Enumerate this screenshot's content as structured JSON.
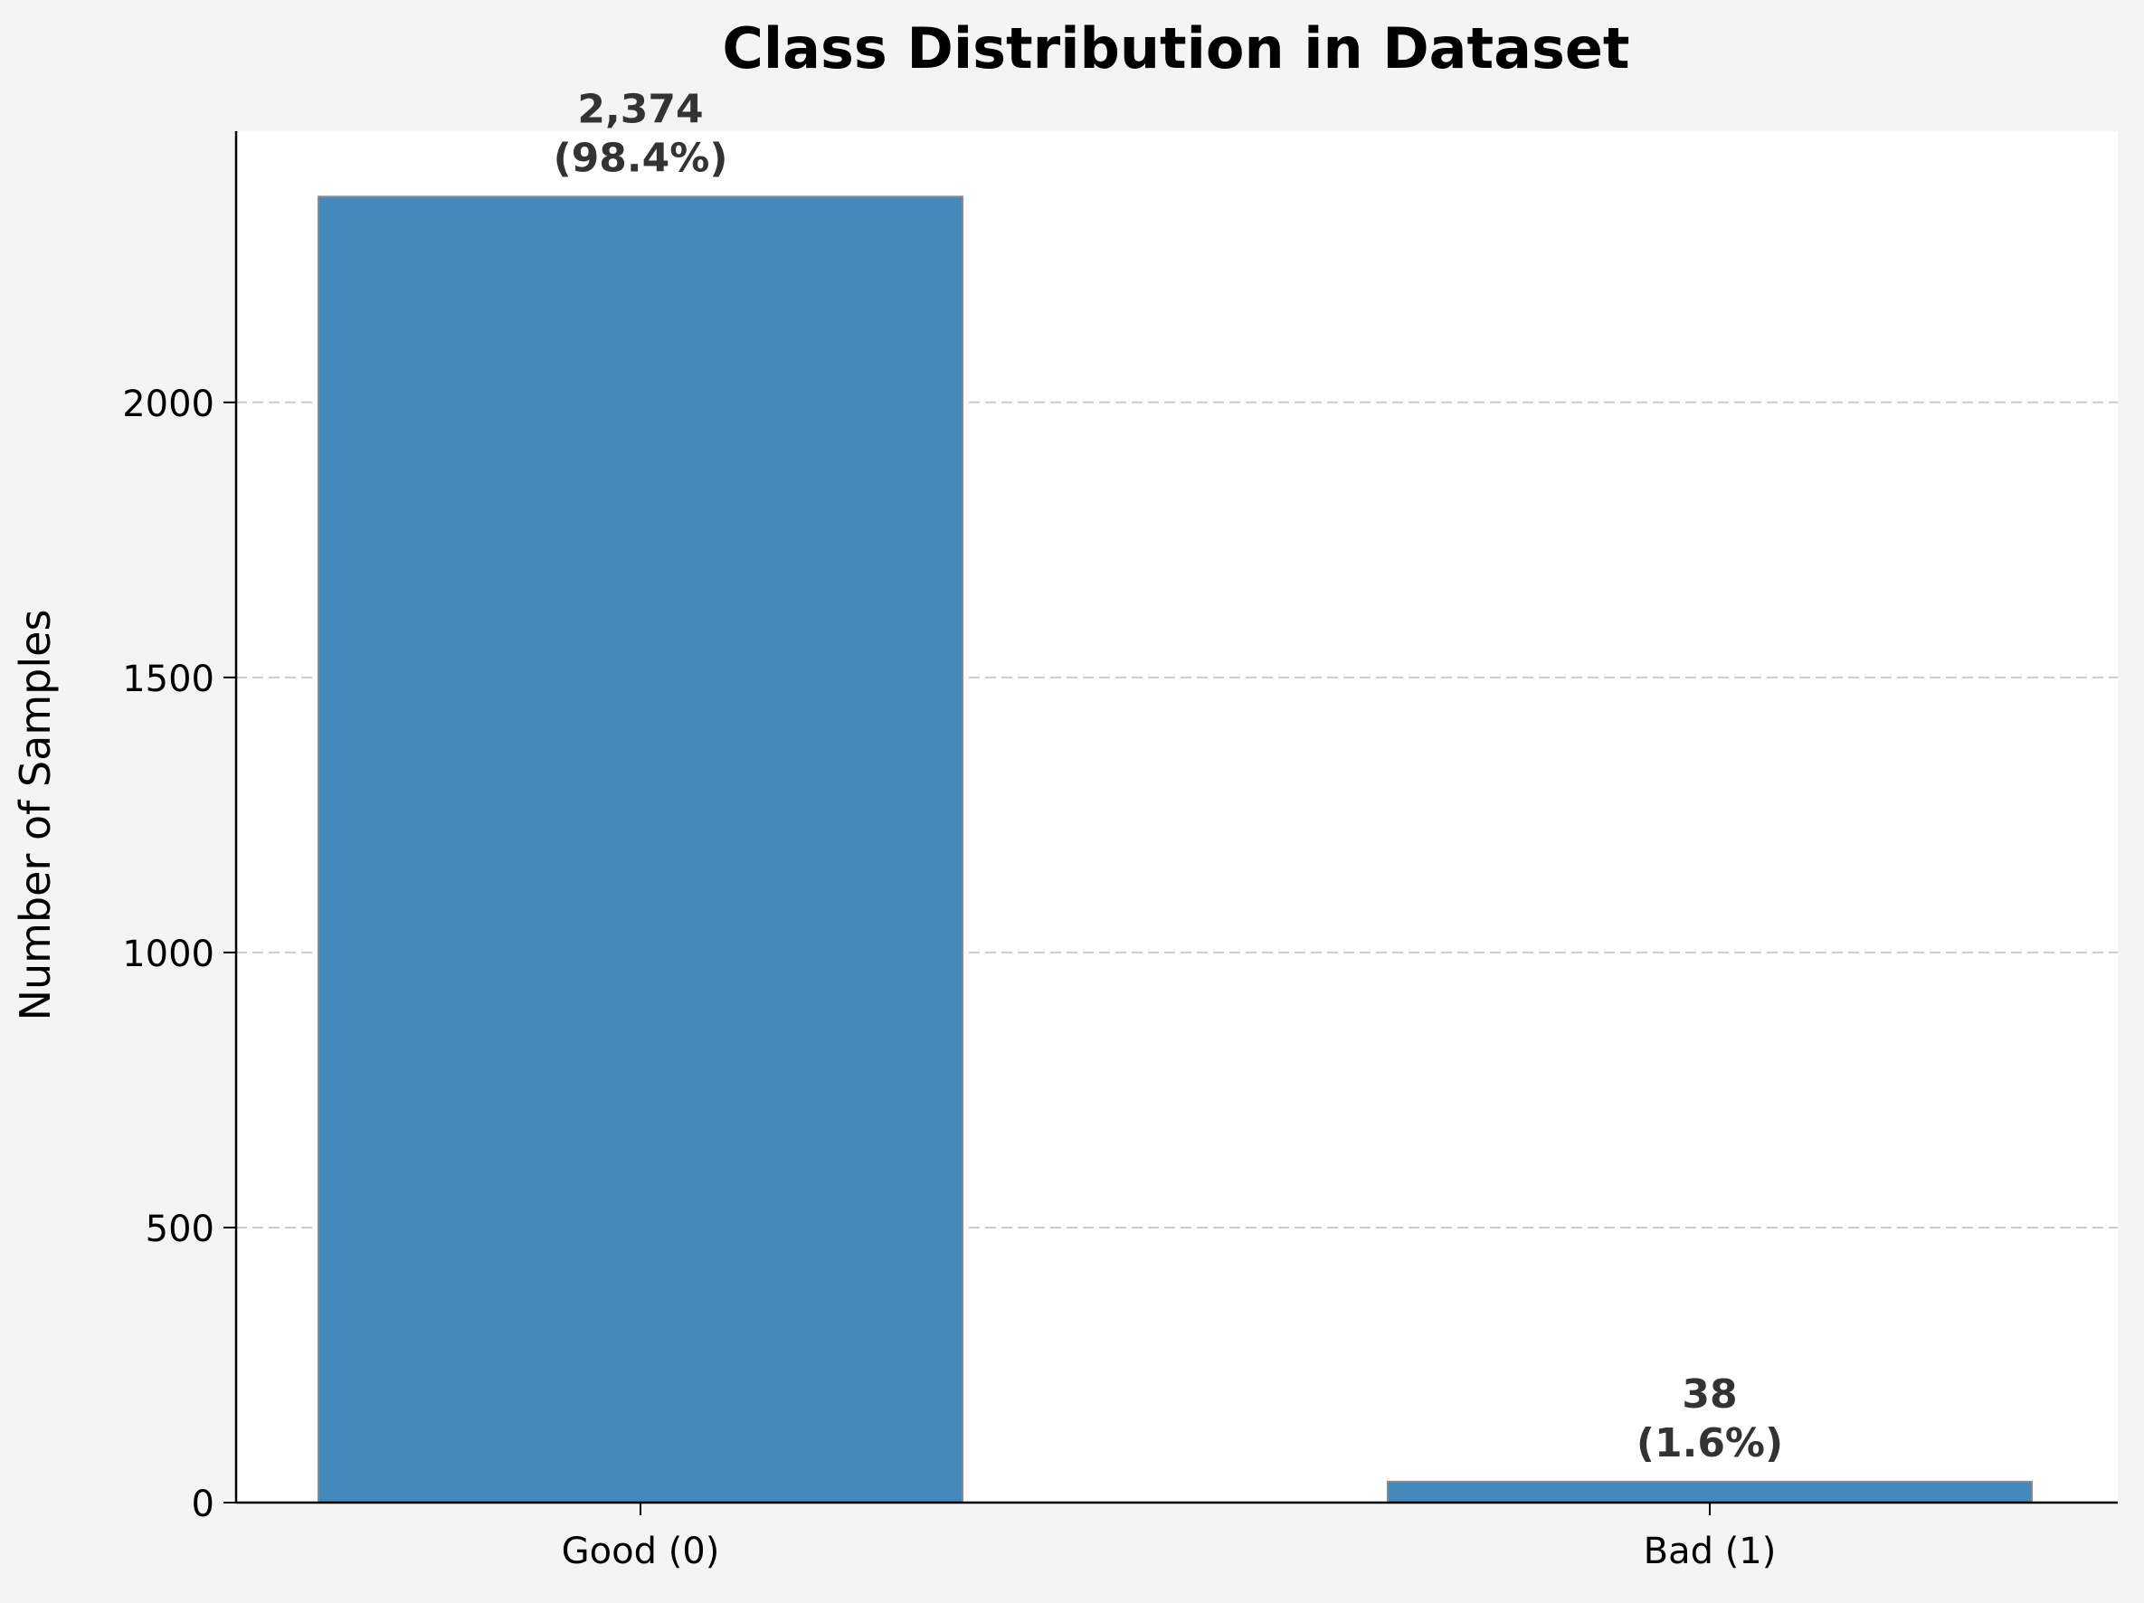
{
  "chart_data": {
    "type": "bar",
    "title": "Class Distribution in Dataset",
    "xlabel": "",
    "ylabel": "Number of Samples",
    "categories": [
      "Good (0)",
      "Bad (1)"
    ],
    "values": [
      2374,
      38
    ],
    "data_labels": [
      [
        "2,374",
        "(98.4%)"
      ],
      [
        "38",
        "(1.6%)"
      ]
    ],
    "ylim": [
      0,
      2493
    ],
    "yticks": [
      0,
      500,
      1000,
      1500,
      2000
    ],
    "grid": "y dashed",
    "legend": "none",
    "colors": {
      "bar": "#4489bd",
      "bar_edge": "#8a8a8a",
      "plot_bg": "#ffffff",
      "page_bg": "#f4f4f4",
      "grid": "#cccccc",
      "axis": "#000000",
      "label_text": "#333333"
    }
  }
}
